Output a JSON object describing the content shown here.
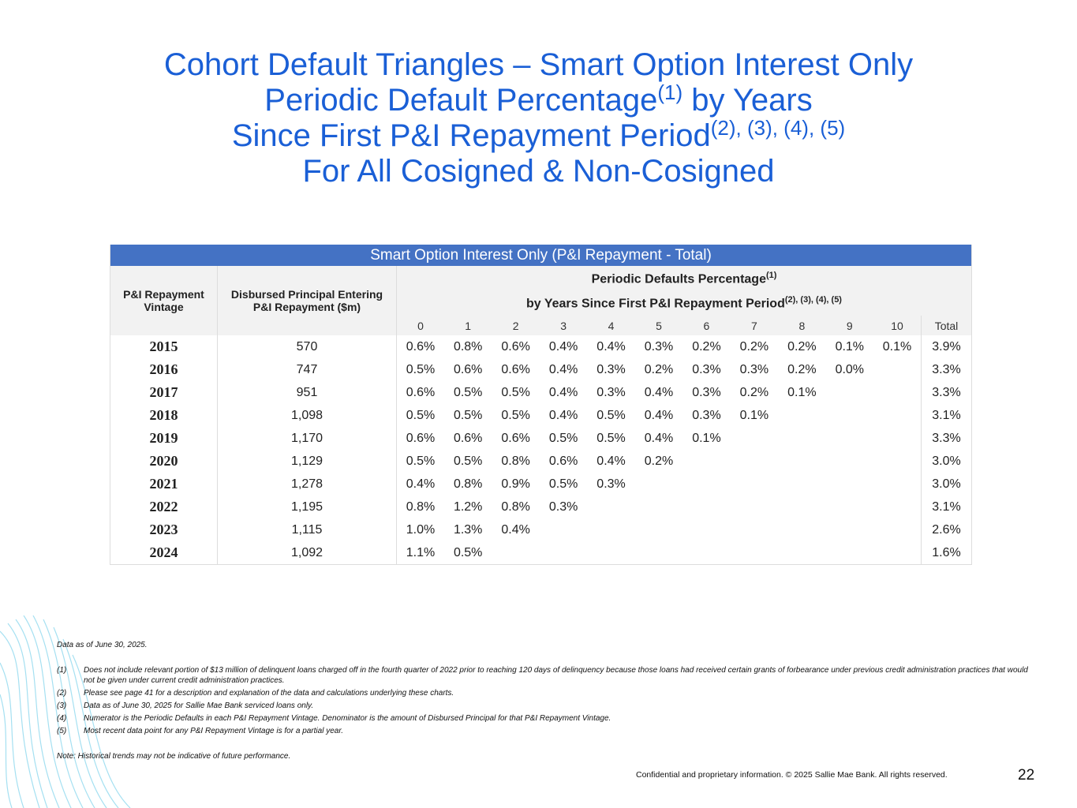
{
  "title_lines": [
    {
      "text": "Cohort Default Triangles – Smart Option Interest Only"
    },
    {
      "text": "Periodic Default Percentage",
      "sup": "(1)",
      "tail": " by Years"
    },
    {
      "text": "Since First P&I Repayment Period",
      "sup": "(2), (3), (4), (5)"
    },
    {
      "text": "For All Cosigned & Non-Cosigned"
    }
  ],
  "table": {
    "caption": "Smart Option Interest Only (P&I Repayment - Total)",
    "col1_header": "P&I Repayment Vintage",
    "col2_header": "Disbursed Principal Entering P&I Repayment ($m)",
    "group_header": {
      "line1": "Periodic Defaults Percentage",
      "line1_sup": "(1)",
      "line2": "by Years Since First P&I Repayment Period",
      "line2_sup": "(2), (3), (4), (5)"
    },
    "periods": [
      "0",
      "1",
      "2",
      "3",
      "4",
      "5",
      "6",
      "7",
      "8",
      "9",
      "10"
    ],
    "total_header": "Total",
    "rows": [
      {
        "vintage": "2015",
        "principal": "570",
        "periods": [
          "0.6%",
          "0.8%",
          "0.6%",
          "0.4%",
          "0.4%",
          "0.3%",
          "0.2%",
          "0.2%",
          "0.2%",
          "0.1%",
          "0.1%"
        ],
        "total": "3.9%"
      },
      {
        "vintage": "2016",
        "principal": "747",
        "periods": [
          "0.5%",
          "0.6%",
          "0.6%",
          "0.4%",
          "0.3%",
          "0.2%",
          "0.3%",
          "0.3%",
          "0.2%",
          "0.0%"
        ],
        "total": "3.3%"
      },
      {
        "vintage": "2017",
        "principal": "951",
        "periods": [
          "0.6%",
          "0.5%",
          "0.5%",
          "0.4%",
          "0.3%",
          "0.4%",
          "0.3%",
          "0.2%",
          "0.1%"
        ],
        "total": "3.3%"
      },
      {
        "vintage": "2018",
        "principal": "1,098",
        "periods": [
          "0.5%",
          "0.5%",
          "0.5%",
          "0.4%",
          "0.5%",
          "0.4%",
          "0.3%",
          "0.1%"
        ],
        "total": "3.1%"
      },
      {
        "vintage": "2019",
        "principal": "1,170",
        "periods": [
          "0.6%",
          "0.6%",
          "0.6%",
          "0.5%",
          "0.5%",
          "0.4%",
          "0.1%"
        ],
        "total": "3.3%"
      },
      {
        "vintage": "2020",
        "principal": "1,129",
        "periods": [
          "0.5%",
          "0.5%",
          "0.8%",
          "0.6%",
          "0.4%",
          "0.2%"
        ],
        "total": "3.0%"
      },
      {
        "vintage": "2021",
        "principal": "1,278",
        "periods": [
          "0.4%",
          "0.8%",
          "0.9%",
          "0.5%",
          "0.3%"
        ],
        "total": "3.0%"
      },
      {
        "vintage": "2022",
        "principal": "1,195",
        "periods": [
          "0.8%",
          "1.2%",
          "0.8%",
          "0.3%"
        ],
        "total": "3.1%"
      },
      {
        "vintage": "2023",
        "principal": "1,115",
        "periods": [
          "1.0%",
          "1.3%",
          "0.4%"
        ],
        "total": "2.6%"
      },
      {
        "vintage": "2024",
        "principal": "1,092",
        "periods": [
          "1.1%",
          "0.5%"
        ],
        "total": "1.6%"
      }
    ]
  },
  "data_as_of": "Data as of June 30, 2025.",
  "footnotes": [
    {
      "marker": "(1)",
      "text": "Does not include relevant portion of $13 million of delinquent loans charged off in the fourth quarter of 2022 prior to reaching 120 days of delinquency because those loans had received certain grants of forbearance under previous credit administration practices that would not be given under current credit administration practices."
    },
    {
      "marker": "(2)",
      "text": "Please see page 41 for a description and explanation of the data and calculations underlying these charts."
    },
    {
      "marker": "(3)",
      "text": "Data as of June 30, 2025 for Sallie Mae Bank serviced loans only."
    },
    {
      "marker": "(4)",
      "text": "Numerator is the Periodic Defaults in each P&I Repayment Vintage. Denominator is the amount of Disbursed Principal for that P&I Repayment Vintage."
    },
    {
      "marker": "(5)",
      "text": "Most recent data point for any P&I Repayment Vintage is for a partial year."
    }
  ],
  "note": "Note: Historical trends may not be indicative of future performance.",
  "footer": "Confidential and proprietary information. © 2025 Sallie Mae Bank. All rights reserved.",
  "page_number": "22"
}
